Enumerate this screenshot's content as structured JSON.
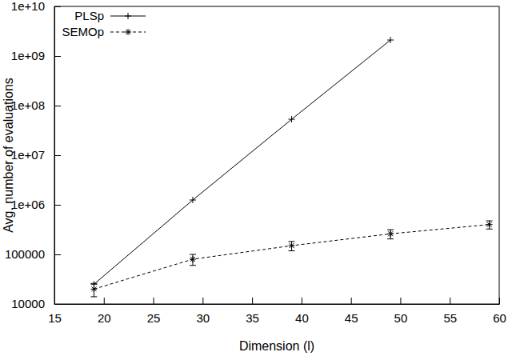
{
  "chart_data": {
    "type": "line",
    "x_label": "Dimension (l)",
    "y_label": "Avg. number of evaluations",
    "log": "y",
    "legend": "top-left",
    "xlim": [
      15,
      60
    ],
    "xticks": [
      15,
      20,
      25,
      30,
      35,
      40,
      45,
      50,
      55,
      60
    ],
    "ylim": [
      10000,
      10000000000
    ],
    "yticks": [
      10000,
      100000,
      {
        "value": 1000000,
        "label": "1e+06"
      },
      {
        "value": 10000000,
        "label": "1e+07"
      },
      {
        "value": 100000000,
        "label": "1e+08"
      },
      {
        "value": 1000000000,
        "label": "1e+09"
      },
      {
        "value": 10000000000,
        "label": "1e+10"
      }
    ],
    "series": [
      {
        "name": "PLSp",
        "color": "#000000",
        "marker": "plus",
        "line_style": "solid",
        "x": [
          19,
          29,
          39,
          49
        ],
        "values": [
          25000,
          1250000,
          53000000,
          2100000000
        ]
      },
      {
        "name": "SEMOp",
        "color": "#000000",
        "marker": "star",
        "line_style": "dashed",
        "x": [
          19,
          29,
          39,
          49,
          59
        ],
        "values": [
          20000,
          80000,
          150000,
          260000,
          400000
        ],
        "errors": [
          6000,
          20000,
          32000,
          55000,
          75000
        ]
      }
    ]
  }
}
